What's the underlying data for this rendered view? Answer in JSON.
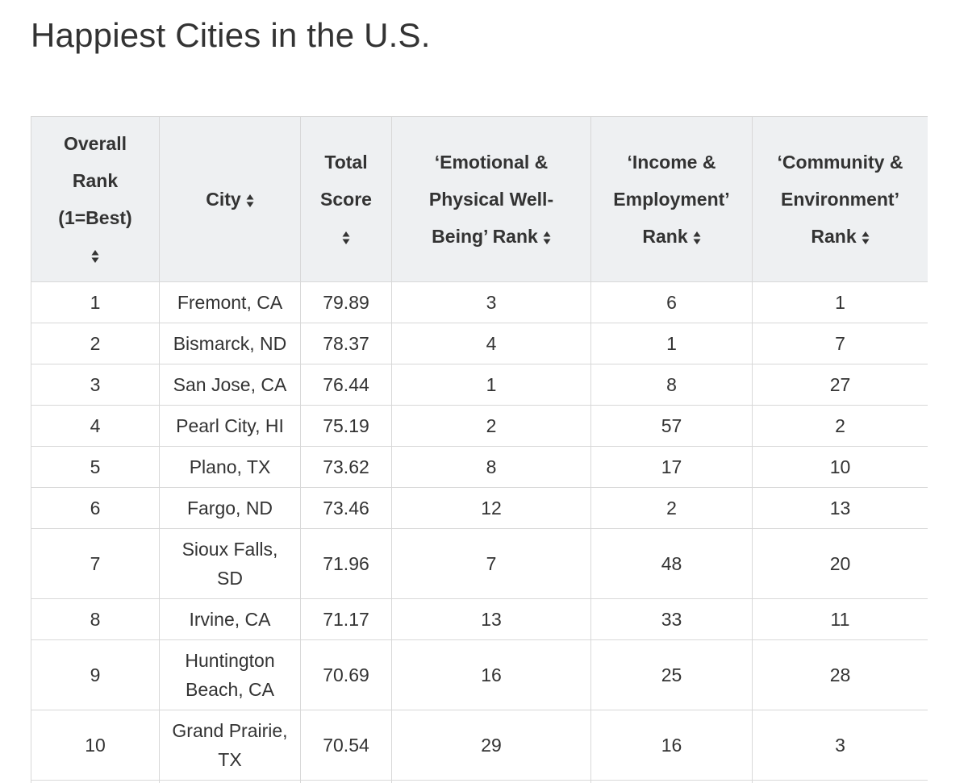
{
  "page": {
    "title": "Happiest Cities in the U.S."
  },
  "table": {
    "headers": {
      "rank": [
        "Overall",
        "Rank",
        "(1=Best)"
      ],
      "city": "City",
      "score": [
        "Total",
        "Score"
      ],
      "emotional": [
        "‘Emotional &",
        "Physical Well-",
        "Being’ Rank"
      ],
      "income": [
        "‘Income &",
        "Employment’",
        "Rank"
      ],
      "community": [
        "‘Community &",
        "Environment’",
        "Rank"
      ]
    },
    "rows": [
      {
        "rank": "1",
        "city": [
          "Fremont, CA"
        ],
        "score": "79.89",
        "emotional": "3",
        "income": "6",
        "community": "1"
      },
      {
        "rank": "2",
        "city": [
          "Bismarck, ND"
        ],
        "score": "78.37",
        "emotional": "4",
        "income": "1",
        "community": "7"
      },
      {
        "rank": "3",
        "city": [
          "San Jose, CA"
        ],
        "score": "76.44",
        "emotional": "1",
        "income": "8",
        "community": "27"
      },
      {
        "rank": "4",
        "city": [
          "Pearl City, HI"
        ],
        "score": "75.19",
        "emotional": "2",
        "income": "57",
        "community": "2"
      },
      {
        "rank": "5",
        "city": [
          "Plano, TX"
        ],
        "score": "73.62",
        "emotional": "8",
        "income": "17",
        "community": "10"
      },
      {
        "rank": "6",
        "city": [
          "Fargo, ND"
        ],
        "score": "73.46",
        "emotional": "12",
        "income": "2",
        "community": "13"
      },
      {
        "rank": "7",
        "city": [
          "Sioux Falls,",
          "SD"
        ],
        "score": "71.96",
        "emotional": "7",
        "income": "48",
        "community": "20"
      },
      {
        "rank": "8",
        "city": [
          "Irvine, CA"
        ],
        "score": "71.17",
        "emotional": "13",
        "income": "33",
        "community": "11"
      },
      {
        "rank": "9",
        "city": [
          "Huntington",
          "Beach, CA"
        ],
        "score": "70.69",
        "emotional": "16",
        "income": "25",
        "community": "28"
      },
      {
        "rank": "10",
        "city": [
          "Grand Prairie,",
          "TX"
        ],
        "score": "70.54",
        "emotional": "29",
        "income": "16",
        "community": "3"
      }
    ]
  },
  "icons": {
    "sort": "sort-updown-icon"
  },
  "colors": {
    "header_bg": "#eef0f2",
    "border": "#d8d8d8",
    "text": "#333333"
  }
}
